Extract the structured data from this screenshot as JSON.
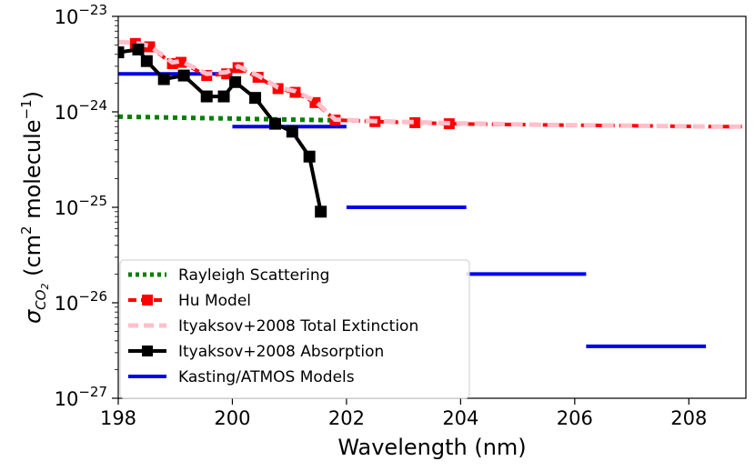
{
  "chart_data": {
    "type": "line",
    "yscale": "log",
    "xlabel": "Wavelength (nm)",
    "ylabel": {
      "prefix": "σ",
      "subscript": "CO",
      "subsub": "2",
      "units_open": " (cm",
      "units_cm_exp": "2",
      "units_mid": " molecule",
      "units_mol_exp": "−1",
      "units_close": ")"
    },
    "xlim": [
      198,
      209
    ],
    "ylim_exp": [
      -27,
      -23
    ],
    "xticks": [
      198,
      200,
      202,
      204,
      206,
      208
    ],
    "xtick_labels": [
      "198",
      "200",
      "202",
      "204",
      "206",
      "208"
    ],
    "yticks_exp": [
      -23,
      -24,
      -25,
      -26,
      -27
    ],
    "ytick_base": "10",
    "ytick_exponents": [
      "−23",
      "−24",
      "−25",
      "−26",
      "−27"
    ],
    "legend_position": "lower-left",
    "series": [
      {
        "name": "Rayleigh Scattering",
        "style": "dotted",
        "color": "#008000",
        "x": [
          198,
          198.5,
          199,
          199.5,
          200,
          200.5,
          201,
          201.5,
          201.8
        ],
        "y": [
          8.9e-25,
          8.8e-25,
          8.7e-25,
          8.6e-25,
          8.5e-25,
          8.4e-25,
          8.3e-25,
          8.2e-25,
          8.15e-25
        ]
      },
      {
        "name": "Hu Model",
        "style": "dashed-marker",
        "color": "#ff0000",
        "x": [
          198.3,
          198.55,
          198.95,
          199.1,
          199.55,
          199.9,
          200.1,
          200.45,
          200.8,
          201.1,
          201.45,
          201.8,
          202.5,
          203.2,
          203.8,
          204.5,
          205.5,
          206.5,
          207.5,
          208.5,
          209
        ],
        "y": [
          5.2e-24,
          4.8e-24,
          3.2e-24,
          3.3e-24,
          2.4e-24,
          2.5e-24,
          2.9e-24,
          2.3e-24,
          1.75e-24,
          1.6e-24,
          1.25e-24,
          8.2e-25,
          7.9e-25,
          7.7e-25,
          7.5e-25,
          7.4e-25,
          7.3e-25,
          7.2e-25,
          7.1e-25,
          7e-25,
          7e-25
        ]
      },
      {
        "name": "Ityaksov+2008 Total Extinction",
        "style": "dashed-thick",
        "color": "#ffc0cb",
        "x": [
          198,
          198.3,
          198.55,
          198.95,
          199.1,
          199.55,
          199.9,
          200.1,
          200.45,
          200.8,
          201.1,
          201.45,
          201.8,
          202.5,
          203.2,
          203.8,
          204.5,
          205.5,
          206.5,
          207.5,
          208.5,
          209
        ],
        "y": [
          5.4e-24,
          5.3e-24,
          4.9e-24,
          3.3e-24,
          3.4e-24,
          2.5e-24,
          2.6e-24,
          3e-24,
          2.4e-24,
          1.8e-24,
          1.65e-24,
          1.3e-24,
          8.3e-25,
          8e-25,
          7.8e-25,
          7.6e-25,
          7.5e-25,
          7.3e-25,
          7.2e-25,
          7.1e-25,
          7e-25,
          7e-25
        ]
      },
      {
        "name": "Ityaksov+2008 Absorption",
        "style": "solid-marker",
        "color": "#000000",
        "x": [
          198,
          198.35,
          198.5,
          198.8,
          199.15,
          199.55,
          199.85,
          200.05,
          200.4,
          200.75,
          201.05,
          201.35,
          201.55
        ],
        "y": [
          4.2e-24,
          4.5e-24,
          3.4e-24,
          2.2e-24,
          2.4e-24,
          1.45e-24,
          1.45e-24,
          2.05e-24,
          1.4e-24,
          7.5e-25,
          6.2e-25,
          3.4e-25,
          9e-26
        ]
      }
    ],
    "segments": {
      "name": "Kasting/ATMOS Models",
      "color": "#0000ee",
      "items": [
        {
          "x0": 198,
          "x1": 200,
          "y": 2.5e-24
        },
        {
          "x0": 200,
          "x1": 202,
          "y": 7e-25
        },
        {
          "x0": 202,
          "x1": 204.1,
          "y": 1e-25
        },
        {
          "x0": 204.1,
          "x1": 206.2,
          "y": 2e-26
        },
        {
          "x0": 206.2,
          "x1": 208.3,
          "y": 3.5e-27
        }
      ]
    },
    "legend": [
      {
        "label": "Rayleigh Scattering",
        "kind": "dotted",
        "color": "#008000"
      },
      {
        "label": "Hu Model",
        "kind": "dashed-marker",
        "color": "#ff0000"
      },
      {
        "label": "Ityaksov+2008 Total Extinction",
        "kind": "dashed-thick",
        "color": "#ffc0cb"
      },
      {
        "label": "Ityaksov+2008 Absorption",
        "kind": "solid-marker",
        "color": "#000000"
      },
      {
        "label": "Kasting/ATMOS Models",
        "kind": "solid",
        "color": "#0000ee"
      }
    ]
  }
}
